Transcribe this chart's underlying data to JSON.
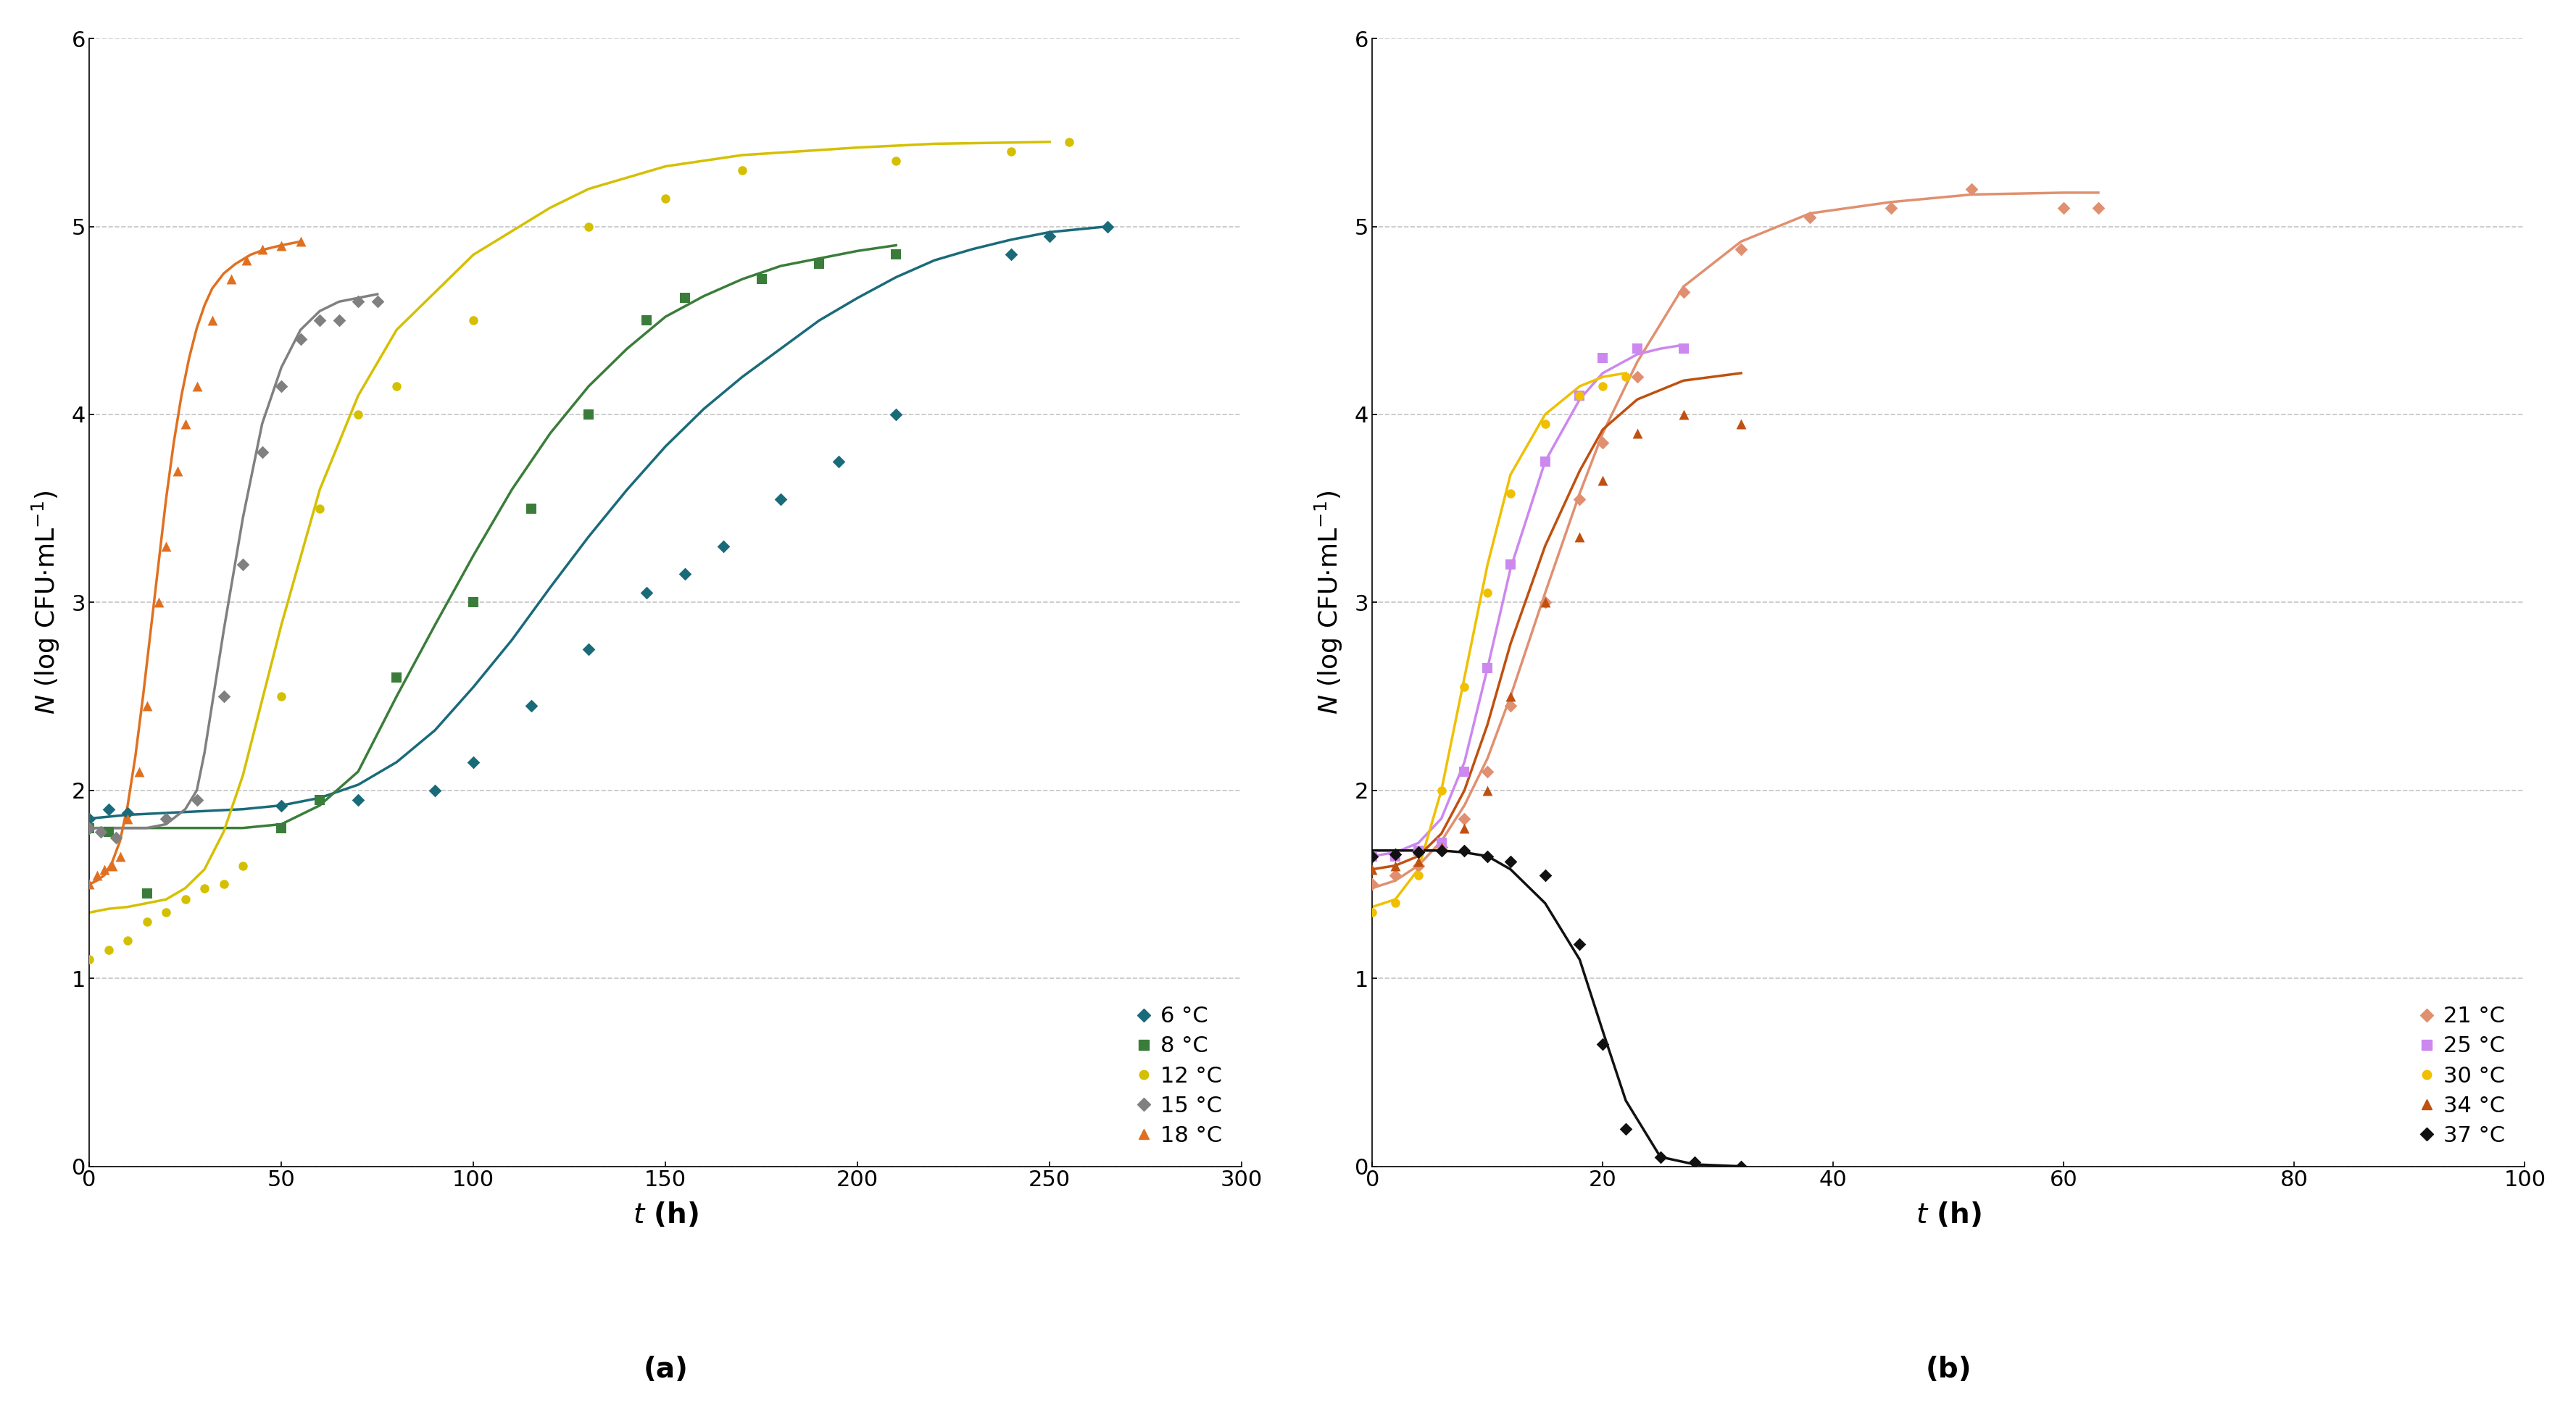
{
  "panel_a": {
    "title": "(a)",
    "xlabel": "t (h)",
    "ylabel": "N (log CFU·mL⁻¹)",
    "xlim": [
      0,
      300
    ],
    "ylim": [
      0,
      6
    ],
    "xticks": [
      0,
      50,
      100,
      150,
      200,
      250,
      300
    ],
    "yticks": [
      0,
      1,
      2,
      3,
      4,
      5,
      6
    ],
    "series": [
      {
        "label": "6 °C",
        "color": "#1a6b7a",
        "marker": "D",
        "markersize": 9,
        "scatter_x": [
          0,
          5,
          10,
          50,
          70,
          90,
          100,
          115,
          130,
          145,
          155,
          165,
          180,
          195,
          210,
          240,
          250,
          265
        ],
        "scatter_y": [
          1.85,
          1.9,
          1.88,
          1.92,
          1.95,
          2.0,
          2.15,
          2.45,
          2.75,
          3.05,
          3.15,
          3.3,
          3.55,
          3.75,
          4.0,
          4.85,
          4.95,
          5.0
        ],
        "curve_x": [
          0,
          5,
          10,
          20,
          30,
          40,
          50,
          60,
          70,
          80,
          90,
          100,
          110,
          120,
          130,
          140,
          150,
          160,
          170,
          180,
          190,
          200,
          210,
          220,
          230,
          240,
          250,
          260,
          265
        ],
        "curve_y": [
          1.85,
          1.86,
          1.87,
          1.88,
          1.89,
          1.9,
          1.92,
          1.96,
          2.03,
          2.15,
          2.32,
          2.55,
          2.8,
          3.08,
          3.35,
          3.6,
          3.83,
          4.03,
          4.2,
          4.35,
          4.5,
          4.62,
          4.73,
          4.82,
          4.88,
          4.93,
          4.97,
          4.99,
          5.0
        ]
      },
      {
        "label": "8 °C",
        "color": "#3a7d3a",
        "marker": "s",
        "markersize": 10,
        "scatter_x": [
          0,
          5,
          15,
          50,
          60,
          80,
          100,
          115,
          130,
          145,
          155,
          175,
          190,
          210
        ],
        "scatter_y": [
          1.8,
          1.78,
          1.45,
          1.8,
          1.95,
          2.6,
          3.0,
          3.5,
          4.0,
          4.5,
          4.62,
          4.72,
          4.8,
          4.85
        ],
        "curve_x": [
          0,
          5,
          10,
          20,
          30,
          40,
          50,
          60,
          70,
          80,
          90,
          100,
          110,
          120,
          130,
          140,
          150,
          160,
          170,
          180,
          190,
          200,
          210
        ],
        "curve_y": [
          1.8,
          1.8,
          1.8,
          1.8,
          1.8,
          1.8,
          1.82,
          1.92,
          2.1,
          2.5,
          2.88,
          3.25,
          3.6,
          3.9,
          4.15,
          4.35,
          4.52,
          4.63,
          4.72,
          4.79,
          4.83,
          4.87,
          4.9
        ]
      },
      {
        "label": "12 °C",
        "color": "#d4c000",
        "marker": "o",
        "markersize": 9,
        "scatter_x": [
          0,
          5,
          10,
          15,
          20,
          25,
          30,
          35,
          40,
          50,
          60,
          70,
          80,
          100,
          130,
          150,
          170,
          210,
          240,
          255
        ],
        "scatter_y": [
          1.1,
          1.15,
          1.2,
          1.3,
          1.35,
          1.42,
          1.48,
          1.5,
          1.6,
          2.5,
          3.5,
          4.0,
          4.15,
          4.5,
          5.0,
          5.15,
          5.3,
          5.35,
          5.4,
          5.45
        ],
        "curve_x": [
          0,
          5,
          10,
          15,
          20,
          25,
          30,
          35,
          40,
          50,
          60,
          70,
          80,
          100,
          120,
          130,
          150,
          170,
          200,
          220,
          250
        ],
        "curve_y": [
          1.35,
          1.37,
          1.38,
          1.4,
          1.42,
          1.48,
          1.58,
          1.78,
          2.08,
          2.88,
          3.6,
          4.1,
          4.45,
          4.85,
          5.1,
          5.2,
          5.32,
          5.38,
          5.42,
          5.44,
          5.45
        ]
      },
      {
        "label": "15 °C",
        "color": "#808080",
        "marker": "D",
        "markersize": 9,
        "scatter_x": [
          0,
          3,
          7,
          20,
          28,
          35,
          40,
          45,
          50,
          55,
          60,
          65,
          70,
          75
        ],
        "scatter_y": [
          1.8,
          1.78,
          1.75,
          1.85,
          1.95,
          2.5,
          3.2,
          3.8,
          4.15,
          4.4,
          4.5,
          4.5,
          4.6,
          4.6
        ],
        "curve_x": [
          0,
          5,
          10,
          15,
          20,
          25,
          28,
          30,
          35,
          40,
          45,
          50,
          55,
          60,
          65,
          70,
          75
        ],
        "curve_y": [
          1.8,
          1.8,
          1.8,
          1.8,
          1.82,
          1.9,
          2.0,
          2.2,
          2.85,
          3.45,
          3.95,
          4.25,
          4.45,
          4.55,
          4.6,
          4.62,
          4.64
        ]
      },
      {
        "label": "18 °C",
        "color": "#e07020",
        "marker": "^",
        "markersize": 10,
        "scatter_x": [
          0,
          2,
          4,
          6,
          8,
          10,
          13,
          15,
          18,
          20,
          23,
          25,
          28,
          32,
          37,
          41,
          45,
          50,
          55
        ],
        "scatter_y": [
          1.5,
          1.55,
          1.58,
          1.6,
          1.65,
          1.85,
          2.1,
          2.45,
          3.0,
          3.3,
          3.7,
          3.95,
          4.15,
          4.5,
          4.72,
          4.82,
          4.88,
          4.9,
          4.92
        ],
        "curve_x": [
          0,
          2,
          4,
          6,
          8,
          10,
          12,
          14,
          16,
          18,
          20,
          22,
          24,
          26,
          28,
          30,
          32,
          35,
          38,
          42,
          46,
          50,
          55
        ],
        "curve_y": [
          1.5,
          1.52,
          1.55,
          1.62,
          1.73,
          1.92,
          2.18,
          2.5,
          2.85,
          3.2,
          3.55,
          3.85,
          4.1,
          4.3,
          4.46,
          4.58,
          4.67,
          4.75,
          4.8,
          4.85,
          4.88,
          4.9,
          4.92
        ]
      }
    ]
  },
  "panel_b": {
    "title": "(b)",
    "xlabel": "t (h)",
    "ylabel": "N (log CFU·mL⁻¹)",
    "xlim": [
      0,
      100
    ],
    "ylim": [
      0,
      6
    ],
    "xticks": [
      0,
      20,
      40,
      60,
      80,
      100
    ],
    "yticks": [
      0,
      1,
      2,
      3,
      4,
      5,
      6
    ],
    "series": [
      {
        "label": "21 °C",
        "color": "#e09070",
        "marker": "D",
        "markersize": 9,
        "scatter_x": [
          0,
          2,
          4,
          6,
          8,
          10,
          12,
          15,
          18,
          20,
          23,
          27,
          32,
          38,
          45,
          52,
          60,
          63
        ],
        "scatter_y": [
          1.5,
          1.55,
          1.6,
          1.7,
          1.85,
          2.1,
          2.45,
          3.0,
          3.55,
          3.85,
          4.2,
          4.65,
          4.88,
          5.05,
          5.1,
          5.2,
          5.1,
          5.1
        ],
        "curve_x": [
          0,
          2,
          4,
          6,
          8,
          10,
          12,
          15,
          18,
          20,
          23,
          27,
          32,
          38,
          45,
          52,
          60,
          63
        ],
        "curve_y": [
          1.48,
          1.52,
          1.6,
          1.73,
          1.92,
          2.17,
          2.5,
          3.05,
          3.58,
          3.9,
          4.28,
          4.68,
          4.92,
          5.07,
          5.13,
          5.17,
          5.18,
          5.18
        ]
      },
      {
        "label": "25 °C",
        "color": "#cc88ee",
        "marker": "s",
        "markersize": 10,
        "scatter_x": [
          0,
          2,
          4,
          6,
          8,
          10,
          12,
          15,
          18,
          20,
          23,
          27
        ],
        "scatter_y": [
          1.65,
          1.65,
          1.68,
          1.72,
          2.1,
          2.65,
          3.2,
          3.75,
          4.1,
          4.3,
          4.35,
          4.35
        ],
        "curve_x": [
          0,
          2,
          4,
          6,
          8,
          10,
          12,
          15,
          18,
          20,
          23,
          25,
          27
        ],
        "curve_y": [
          1.65,
          1.67,
          1.72,
          1.85,
          2.15,
          2.65,
          3.18,
          3.75,
          4.08,
          4.22,
          4.32,
          4.35,
          4.37
        ]
      },
      {
        "label": "30 °C",
        "color": "#f0c000",
        "marker": "o",
        "markersize": 9,
        "scatter_x": [
          0,
          2,
          4,
          6,
          8,
          10,
          12,
          15,
          18,
          20,
          22
        ],
        "scatter_y": [
          1.35,
          1.4,
          1.55,
          2.0,
          2.55,
          3.05,
          3.58,
          3.95,
          4.1,
          4.15,
          4.2
        ],
        "curve_x": [
          0,
          2,
          4,
          6,
          8,
          10,
          12,
          15,
          18,
          20,
          22
        ],
        "curve_y": [
          1.38,
          1.42,
          1.58,
          2.0,
          2.6,
          3.2,
          3.68,
          4.0,
          4.15,
          4.2,
          4.22
        ]
      },
      {
        "label": "34 °C",
        "color": "#c05010",
        "marker": "^",
        "markersize": 10,
        "scatter_x": [
          0,
          2,
          4,
          6,
          8,
          10,
          12,
          15,
          18,
          20,
          23,
          27,
          32
        ],
        "scatter_y": [
          1.58,
          1.6,
          1.62,
          1.7,
          1.8,
          2.0,
          2.5,
          3.0,
          3.35,
          3.65,
          3.9,
          4.0,
          3.95
        ],
        "curve_x": [
          0,
          2,
          4,
          6,
          8,
          10,
          12,
          15,
          18,
          20,
          23,
          27,
          32
        ],
        "curve_y": [
          1.58,
          1.6,
          1.65,
          1.77,
          2.0,
          2.35,
          2.78,
          3.3,
          3.7,
          3.92,
          4.08,
          4.18,
          4.22
        ]
      },
      {
        "label": "37 °C",
        "color": "#111111",
        "marker": "D",
        "markersize": 9,
        "scatter_x": [
          0,
          2,
          4,
          6,
          8,
          10,
          12,
          15,
          18,
          20,
          22,
          25,
          28,
          32
        ],
        "scatter_y": [
          1.65,
          1.66,
          1.67,
          1.68,
          1.68,
          1.65,
          1.62,
          1.55,
          1.18,
          0.65,
          0.2,
          0.05,
          0.02,
          0.0
        ],
        "curve_x": [
          0,
          2,
          4,
          6,
          8,
          10,
          12,
          15,
          18,
          20,
          22,
          25,
          28,
          32
        ],
        "curve_y": [
          1.68,
          1.68,
          1.68,
          1.68,
          1.67,
          1.65,
          1.58,
          1.4,
          1.1,
          0.72,
          0.35,
          0.05,
          0.01,
          0.0
        ]
      }
    ]
  },
  "figure_bg": "#ffffff",
  "axes_bg": "#ffffff",
  "grid_color": "#aaaaaa",
  "grid_style": "--",
  "grid_alpha": 0.7
}
